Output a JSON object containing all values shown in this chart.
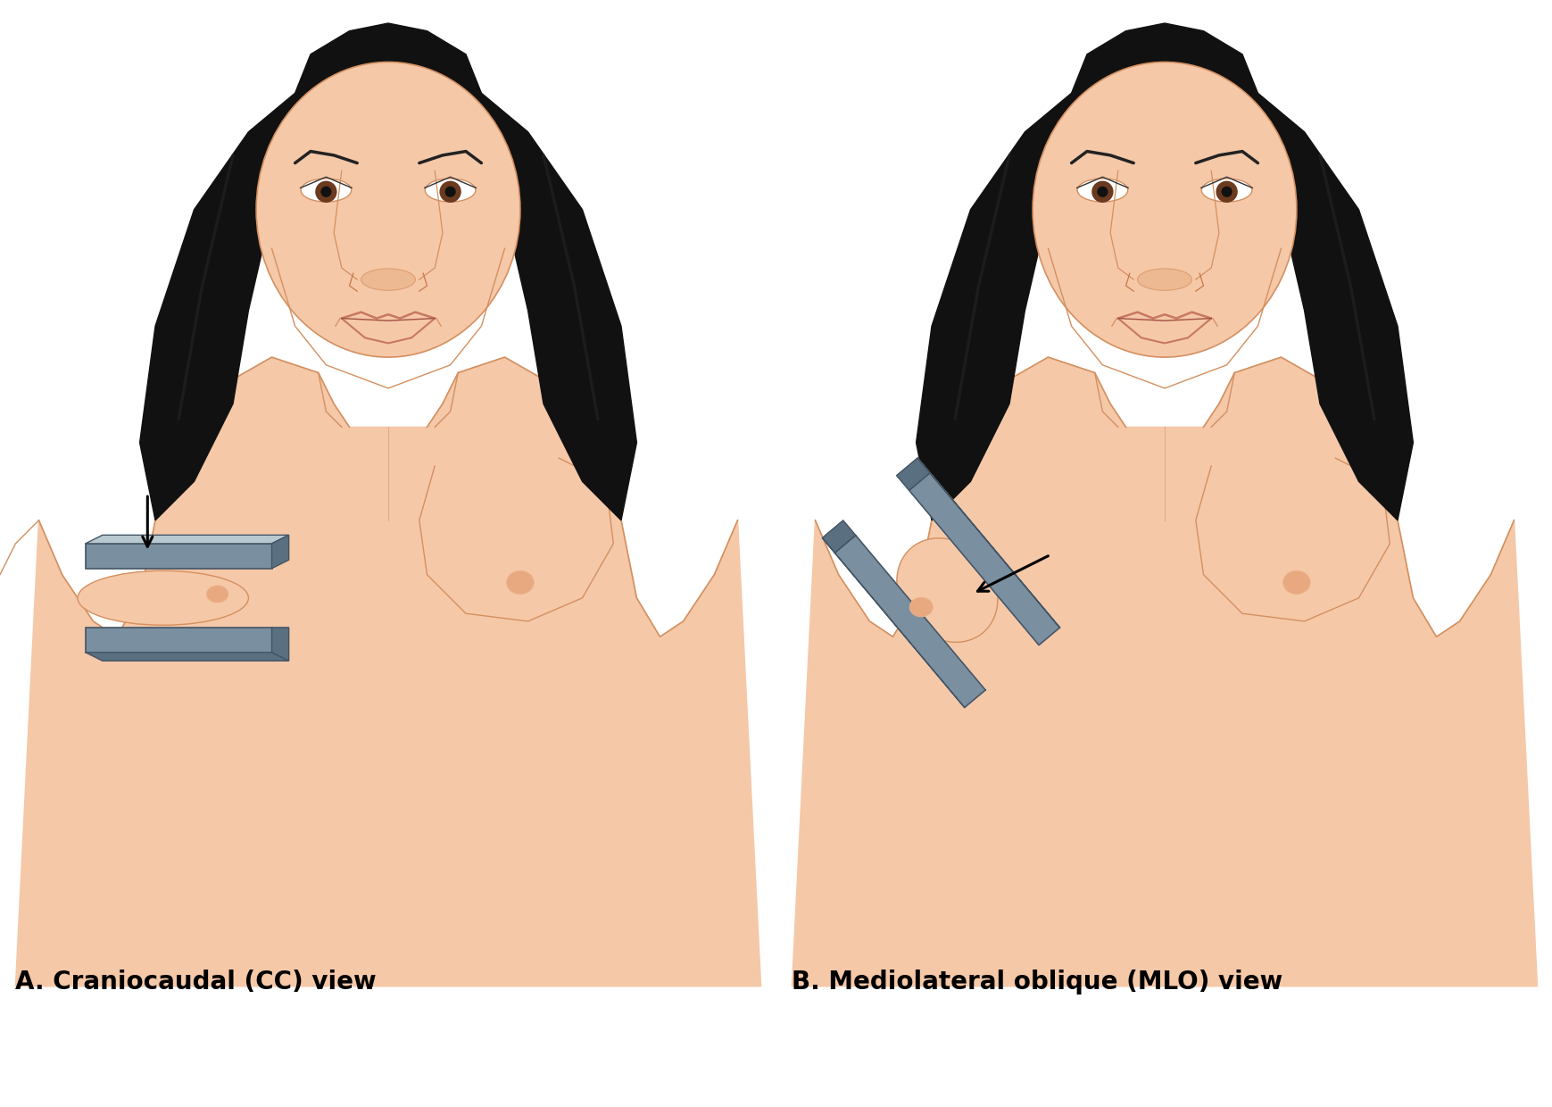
{
  "label_A": "A. Craniocaudal (CC) view",
  "label_B": "B. Mediolateral oblique (MLO) view",
  "bg_color": "#ffffff",
  "skin_color": "#F5C8A8",
  "skin_mid": "#EAB48A",
  "skin_outline": "#C8784A",
  "skin_outline_thin": "#D49060",
  "hair_color": "#111111",
  "hair_dark": "#050505",
  "hair_light": "#282828",
  "lip_color": "#C87860",
  "lip_dark": "#A05040",
  "eye_color": "#6B3A1F",
  "eyebrow_color": "#222222",
  "paddle_top": "#9AABBB",
  "paddle_mid": "#7A8F9F",
  "paddle_dark": "#5A6F7F",
  "paddle_side": "#B8CACF",
  "nipple_color": "#E8A880",
  "label_fontsize": 20,
  "arrow_color": "#000000"
}
